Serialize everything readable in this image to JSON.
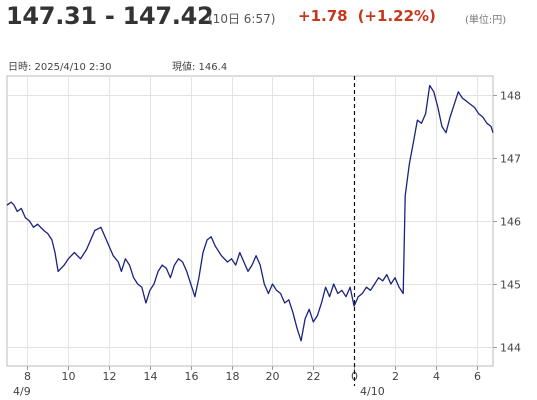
{
  "header": {
    "price_range": "147.31 - 147.42",
    "quote_time": "(10日 6:57)",
    "change": "+1.78",
    "change_pct": "(+1.22%)",
    "unit": "(単位:円)",
    "colors": {
      "price": "#333333",
      "change": "#c6381b"
    }
  },
  "cursor": {
    "time_label": "日時: 2025/4/10 2:30",
    "value_label": "現値: 146.4"
  },
  "chart_data": {
    "type": "line",
    "series_color": "#1a237e",
    "grid": true,
    "y_axis_side": "right",
    "ylim": [
      143.7,
      148.3
    ],
    "y_ticks": [
      144,
      145,
      146,
      147,
      148
    ],
    "x_range_hours": [
      7,
      30.8
    ],
    "x_ticks": [
      {
        "hour": 8,
        "label": "8"
      },
      {
        "hour": 10,
        "label": "10"
      },
      {
        "hour": 12,
        "label": "12"
      },
      {
        "hour": 14,
        "label": "14"
      },
      {
        "hour": 16,
        "label": "16"
      },
      {
        "hour": 18,
        "label": "18"
      },
      {
        "hour": 20,
        "label": "20"
      },
      {
        "hour": 22,
        "label": "22"
      },
      {
        "hour": 24,
        "label": "0"
      },
      {
        "hour": 26,
        "label": "2"
      },
      {
        "hour": 28,
        "label": "4"
      },
      {
        "hour": 30,
        "label": "6"
      }
    ],
    "date_labels": [
      {
        "hour": 7,
        "label": "4/9"
      },
      {
        "hour": 24,
        "label": "4/10"
      }
    ],
    "date_divider_hour": 24,
    "x": [
      7.0,
      7.2,
      7.35,
      7.5,
      7.7,
      7.9,
      8.1,
      8.3,
      8.5,
      8.8,
      9.0,
      9.2,
      9.35,
      9.5,
      9.8,
      10.0,
      10.3,
      10.6,
      10.9,
      11.1,
      11.3,
      11.6,
      11.8,
      12.0,
      12.2,
      12.45,
      12.6,
      12.8,
      13.0,
      13.2,
      13.4,
      13.6,
      13.8,
      14.0,
      14.2,
      14.4,
      14.6,
      14.8,
      15.0,
      15.2,
      15.4,
      15.6,
      15.8,
      16.0,
      16.2,
      16.4,
      16.6,
      16.8,
      17.0,
      17.2,
      17.5,
      17.8,
      18.0,
      18.2,
      18.4,
      18.6,
      18.8,
      19.0,
      19.2,
      19.4,
      19.6,
      19.8,
      20.0,
      20.2,
      20.4,
      20.6,
      20.8,
      21.0,
      21.2,
      21.4,
      21.6,
      21.8,
      22.0,
      22.2,
      22.4,
      22.6,
      22.8,
      23.0,
      23.2,
      23.4,
      23.6,
      23.8,
      24.0,
      24.2,
      24.4,
      24.6,
      24.8,
      25.0,
      25.2,
      25.4,
      25.6,
      25.8,
      26.0,
      26.2,
      26.4,
      26.5,
      26.7,
      26.9,
      27.1,
      27.3,
      27.5,
      27.7,
      27.9,
      28.1,
      28.3,
      28.5,
      28.7,
      28.9,
      29.1,
      29.3,
      29.5,
      29.7,
      29.9,
      30.1,
      30.3,
      30.5,
      30.7,
      30.8
    ],
    "y": [
      146.25,
      146.3,
      146.25,
      146.15,
      146.2,
      146.05,
      146.0,
      145.9,
      145.95,
      145.85,
      145.8,
      145.7,
      145.5,
      145.2,
      145.3,
      145.4,
      145.5,
      145.4,
      145.55,
      145.7,
      145.85,
      145.9,
      145.75,
      145.6,
      145.45,
      145.35,
      145.2,
      145.4,
      145.3,
      145.1,
      145.0,
      144.95,
      144.7,
      144.9,
      145.0,
      145.2,
      145.3,
      145.25,
      145.1,
      145.3,
      145.4,
      145.35,
      145.2,
      145.0,
      144.8,
      145.1,
      145.5,
      145.7,
      145.75,
      145.6,
      145.45,
      145.35,
      145.4,
      145.3,
      145.5,
      145.35,
      145.2,
      145.3,
      145.45,
      145.3,
      145.0,
      144.85,
      145.0,
      144.9,
      144.85,
      144.7,
      144.75,
      144.55,
      144.3,
      144.1,
      144.45,
      144.6,
      144.4,
      144.5,
      144.7,
      144.95,
      144.8,
      145.0,
      144.85,
      144.9,
      144.8,
      144.95,
      144.65,
      144.8,
      144.85,
      144.95,
      144.9,
      145.0,
      145.1,
      145.05,
      145.15,
      145.0,
      145.1,
      144.95,
      144.85,
      146.4,
      146.9,
      147.25,
      147.6,
      147.55,
      147.7,
      148.15,
      148.05,
      147.8,
      147.5,
      147.4,
      147.65,
      147.85,
      148.05,
      147.95,
      147.9,
      147.85,
      147.8,
      147.7,
      147.65,
      147.55,
      147.5,
      147.4
    ]
  }
}
